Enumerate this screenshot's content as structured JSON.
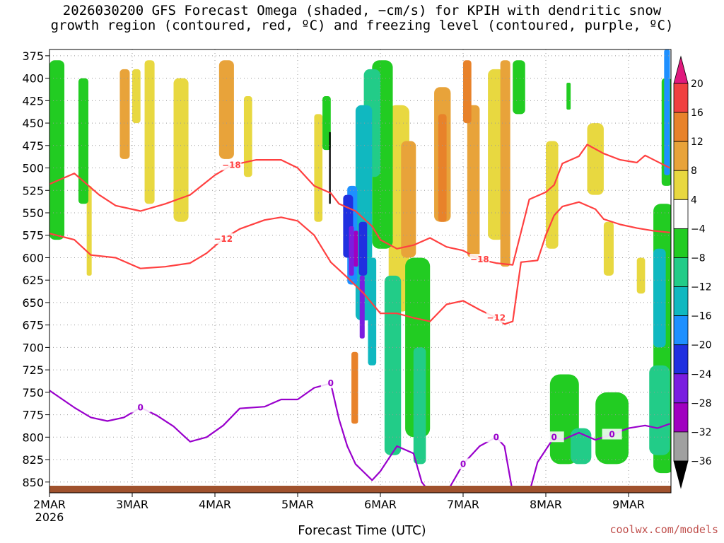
{
  "title": {
    "line1": "2026030200 GFS Forecast Omega (shaded, −cm/s) for KPIH with dendritic snow",
    "line2": "growth region (contoured, red, ºC) and freezing level (contoured, purple, ºC)"
  },
  "credit": "coolwx.com/models",
  "colors": {
    "red_contour": "#ff4040",
    "purple_contour": "#9900cc",
    "ground": "#a0522d"
  },
  "chart_data": {
    "type": "heatmap",
    "xlabel": "Forecast Time (UTC)",
    "ylabel": "",
    "x_ticks": [
      "2MAR",
      "3MAR",
      "4MAR",
      "5MAR",
      "6MAR",
      "7MAR",
      "8MAR",
      "9MAR"
    ],
    "x_year": "2026",
    "xlim": [
      0,
      7.5
    ],
    "y_ticks": [
      375,
      400,
      425,
      450,
      475,
      500,
      525,
      550,
      575,
      600,
      625,
      650,
      675,
      700,
      725,
      750,
      775,
      800,
      825,
      850
    ],
    "ylim": [
      862,
      368
    ],
    "grid": true,
    "colorbar": {
      "labels": [
        "20",
        "16",
        "12",
        "8",
        "4",
        "−4",
        "−8",
        "−12",
        "−16",
        "−20",
        "−24",
        "−28",
        "−32",
        "−36"
      ],
      "bins": [
        {
          "min": 20,
          "max": 24,
          "color": "#e0197d"
        },
        {
          "min": 16,
          "max": 20,
          "color": "#f04040"
        },
        {
          "min": 12,
          "max": 16,
          "color": "#e8822a"
        },
        {
          "min": 8,
          "max": 12,
          "color": "#e8a33a"
        },
        {
          "min": 4,
          "max": 8,
          "color": "#e8d840"
        },
        {
          "min": -4,
          "max": 4,
          "color": "#ffffff"
        },
        {
          "min": -8,
          "max": -4,
          "color": "#22cc22"
        },
        {
          "min": -12,
          "max": -8,
          "color": "#22cc88"
        },
        {
          "min": -16,
          "max": -12,
          "color": "#10b8c0"
        },
        {
          "min": -20,
          "max": -16,
          "color": "#1e90ff"
        },
        {
          "min": -24,
          "max": -20,
          "color": "#2030e0"
        },
        {
          "min": -28,
          "max": -24,
          "color": "#7a1ee0"
        },
        {
          "min": -32,
          "max": -28,
          "color": "#a000c0"
        },
        {
          "min": -36,
          "max": -32,
          "color": "#a0a0a0"
        },
        {
          "min": -40,
          "max": -36,
          "color": "#000000"
        }
      ]
    },
    "contours": [
      {
        "label": "−18",
        "color": "red",
        "points": [
          [
            0,
            518
          ],
          [
            0.3,
            506
          ],
          [
            0.6,
            530
          ],
          [
            0.8,
            542
          ],
          [
            1.1,
            548
          ],
          [
            1.4,
            540
          ],
          [
            1.7,
            530
          ],
          [
            2.0,
            508
          ],
          [
            2.2,
            497
          ],
          [
            2.5,
            491
          ],
          [
            2.8,
            491
          ],
          [
            3.0,
            500
          ],
          [
            3.2,
            520
          ],
          [
            3.4,
            528
          ],
          [
            3.5,
            540
          ],
          [
            3.7,
            548
          ],
          [
            3.9,
            565
          ],
          [
            4.0,
            580
          ],
          [
            4.2,
            590
          ],
          [
            4.4,
            586
          ],
          [
            4.6,
            578
          ],
          [
            4.8,
            588
          ],
          [
            5.0,
            592
          ],
          [
            5.2,
            602
          ],
          [
            5.4,
            606
          ],
          [
            5.6,
            608
          ],
          [
            5.8,
            535
          ],
          [
            6.0,
            527
          ],
          [
            6.1,
            519
          ],
          [
            6.2,
            495
          ],
          [
            6.4,
            487
          ],
          [
            6.5,
            474
          ],
          [
            6.7,
            484
          ],
          [
            6.9,
            491
          ],
          [
            7.1,
            494
          ],
          [
            7.2,
            486
          ],
          [
            7.35,
            493
          ],
          [
            7.5,
            500
          ]
        ]
      },
      {
        "label": "−12",
        "color": "red",
        "points": [
          [
            0,
            573
          ],
          [
            0.3,
            580
          ],
          [
            0.5,
            597
          ],
          [
            0.8,
            600
          ],
          [
            1.1,
            612
          ],
          [
            1.4,
            610
          ],
          [
            1.7,
            606
          ],
          [
            1.9,
            595
          ],
          [
            2.1,
            579
          ],
          [
            2.3,
            568
          ],
          [
            2.6,
            558
          ],
          [
            2.8,
            555
          ],
          [
            3.0,
            559
          ],
          [
            3.2,
            575
          ],
          [
            3.4,
            605
          ],
          [
            3.6,
            622
          ],
          [
            3.8,
            640
          ],
          [
            4.0,
            662
          ],
          [
            4.2,
            662
          ],
          [
            4.4,
            667
          ],
          [
            4.6,
            671
          ],
          [
            4.8,
            652
          ],
          [
            5.0,
            648
          ],
          [
            5.2,
            658
          ],
          [
            5.4,
            667
          ],
          [
            5.5,
            674
          ],
          [
            5.6,
            671
          ],
          [
            5.7,
            605
          ],
          [
            5.9,
            603
          ],
          [
            6.0,
            575
          ],
          [
            6.1,
            553
          ],
          [
            6.2,
            543
          ],
          [
            6.4,
            538
          ],
          [
            6.6,
            546
          ],
          [
            6.7,
            557
          ],
          [
            6.9,
            563
          ],
          [
            7.1,
            567
          ],
          [
            7.3,
            570
          ],
          [
            7.5,
            572
          ]
        ]
      },
      {
        "label": "0",
        "color": "purple",
        "points": [
          [
            0,
            748
          ],
          [
            0.3,
            767
          ],
          [
            0.5,
            778
          ],
          [
            0.7,
            782
          ],
          [
            0.9,
            778
          ],
          [
            1.1,
            767
          ],
          [
            1.3,
            776
          ],
          [
            1.5,
            788
          ],
          [
            1.7,
            805
          ],
          [
            1.9,
            800
          ],
          [
            2.1,
            787
          ],
          [
            2.3,
            768
          ],
          [
            2.6,
            766
          ],
          [
            2.8,
            758
          ],
          [
            3.0,
            758
          ],
          [
            3.2,
            745
          ],
          [
            3.4,
            740
          ],
          [
            3.5,
            780
          ],
          [
            3.6,
            810
          ],
          [
            3.7,
            830
          ],
          [
            3.9,
            848
          ],
          [
            4.0,
            838
          ],
          [
            4.2,
            810
          ],
          [
            4.4,
            818
          ],
          [
            4.5,
            850
          ],
          [
            4.6,
            862
          ]
        ]
      },
      {
        "label": "0",
        "color": "purple",
        "points": [
          [
            4.8,
            862
          ],
          [
            5.0,
            830
          ],
          [
            5.2,
            810
          ],
          [
            5.4,
            800
          ],
          [
            5.5,
            810
          ],
          [
            5.6,
            862
          ]
        ]
      },
      {
        "label": "0",
        "color": "purple",
        "points": [
          [
            5.8,
            862
          ],
          [
            5.9,
            828
          ],
          [
            6.1,
            800
          ],
          [
            6.2,
            803
          ],
          [
            6.4,
            795
          ],
          [
            6.6,
            803
          ],
          [
            6.8,
            797
          ],
          [
            7.0,
            790
          ],
          [
            7.2,
            787
          ],
          [
            7.35,
            790
          ],
          [
            7.5,
            785
          ]
        ]
      }
    ],
    "shaded_regions": [
      {
        "range": "4 to 8",
        "patches": [
          [
            1.15,
            380,
            0.12,
            160
          ],
          [
            1.5,
            400,
            0.18,
            160
          ],
          [
            2.35,
            420,
            0.1,
            90
          ],
          [
            3.2,
            440,
            0.1,
            120
          ],
          [
            4.1,
            430,
            0.25,
            230
          ],
          [
            5.3,
            390,
            0.2,
            190
          ],
          [
            6.0,
            470,
            0.15,
            120
          ],
          [
            6.5,
            450,
            0.2,
            80
          ],
          [
            6.7,
            560,
            0.12,
            60
          ],
          [
            7.1,
            600,
            0.1,
            40
          ],
          [
            0.45,
            520,
            0.06,
            100
          ],
          [
            1.0,
            390,
            0.1,
            60
          ]
        ]
      },
      {
        "range": "8 to 12",
        "patches": [
          [
            0.85,
            390,
            0.12,
            100
          ],
          [
            2.05,
            380,
            0.18,
            110
          ],
          [
            4.25,
            470,
            0.18,
            130
          ],
          [
            4.65,
            410,
            0.2,
            150
          ],
          [
            5.05,
            430,
            0.15,
            170
          ],
          [
            5.45,
            380,
            0.12,
            230
          ]
        ]
      },
      {
        "range": "12 to 16",
        "patches": [
          [
            4.7,
            440,
            0.1,
            120
          ],
          [
            5.0,
            380,
            0.1,
            70
          ],
          [
            3.65,
            705,
            0.08,
            80
          ]
        ]
      },
      {
        "range": "-8 to -4",
        "patches": [
          [
            0.0,
            380,
            0.18,
            200
          ],
          [
            0.35,
            400,
            0.12,
            140
          ],
          [
            3.3,
            420,
            0.1,
            60
          ],
          [
            3.9,
            380,
            0.25,
            210
          ],
          [
            4.3,
            600,
            0.3,
            200
          ],
          [
            5.6,
            380,
            0.15,
            60
          ],
          [
            6.05,
            730,
            0.35,
            100
          ],
          [
            6.6,
            750,
            0.4,
            80
          ],
          [
            7.3,
            540,
            0.25,
            300
          ],
          [
            7.4,
            400,
            0.12,
            120
          ],
          [
            6.25,
            405,
            0.05,
            30
          ]
        ]
      },
      {
        "range": "-12 to -8",
        "patches": [
          [
            3.8,
            390,
            0.2,
            120
          ],
          [
            4.05,
            620,
            0.2,
            200
          ],
          [
            4.4,
            700,
            0.15,
            130
          ],
          [
            7.25,
            720,
            0.25,
            100
          ],
          [
            6.3,
            790,
            0.25,
            40
          ]
        ]
      },
      {
        "range": "-16 to -12",
        "patches": [
          [
            3.7,
            430,
            0.2,
            240
          ],
          [
            7.3,
            590,
            0.15,
            110
          ],
          [
            3.85,
            600,
            0.1,
            120
          ]
        ]
      },
      {
        "range": "-20 to -16",
        "patches": [
          [
            3.6,
            520,
            0.12,
            110
          ],
          [
            7.43,
            368,
            0.07,
            140
          ]
        ]
      },
      {
        "range": "-24 to -20",
        "patches": [
          [
            3.55,
            530,
            0.12,
            70
          ],
          [
            3.74,
            560,
            0.1,
            60
          ]
        ]
      },
      {
        "range": "-28 to -24",
        "patches": [
          [
            3.62,
            565,
            0.06,
            55
          ],
          [
            3.75,
            620,
            0.06,
            70
          ]
        ]
      },
      {
        "range": "-32 to -28",
        "patches": [
          [
            3.68,
            570,
            0.05,
            40
          ]
        ]
      },
      {
        "range": "-40 to -36",
        "patches": [
          [
            3.38,
            460,
            0.02,
            80
          ]
        ]
      }
    ]
  }
}
